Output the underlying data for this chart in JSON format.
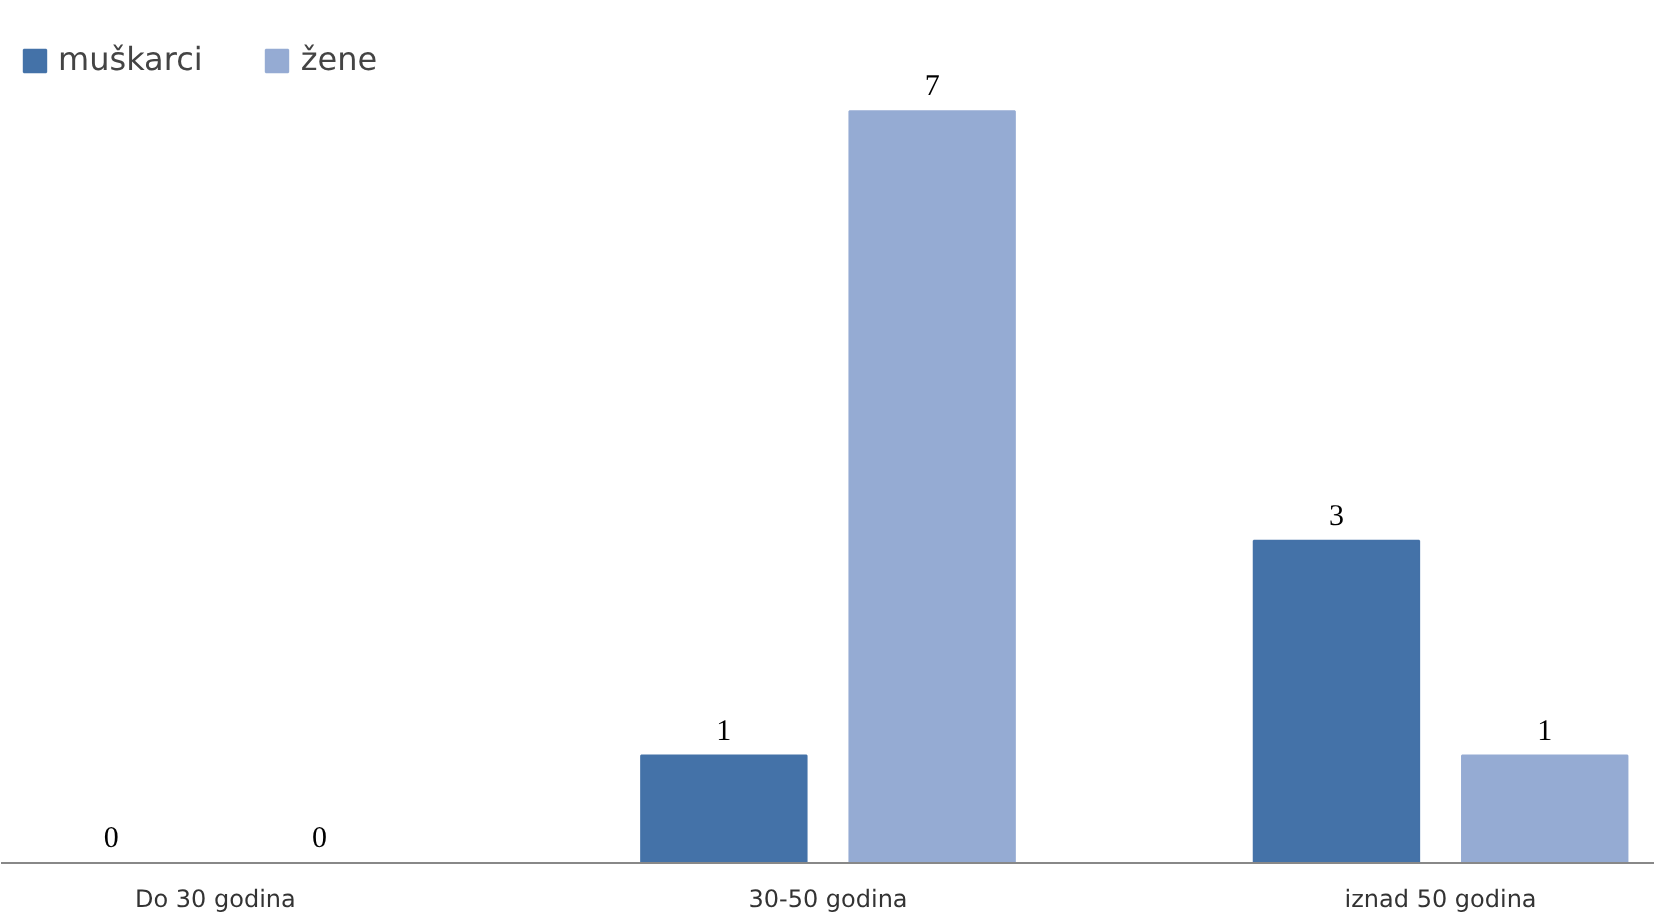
{
  "chart_data": {
    "type": "bar",
    "categories": [
      "Do 30 godina",
      "30-50 godina",
      "iznad 50 godina"
    ],
    "series": [
      {
        "name": "muškarci",
        "color": "#4472a8",
        "values": [
          0,
          1,
          3
        ]
      },
      {
        "name": "žene",
        "color": "#95abd3",
        "values": [
          0,
          7,
          1
        ]
      }
    ],
    "data_labels": true,
    "legend": "top left",
    "grid": false
  }
}
